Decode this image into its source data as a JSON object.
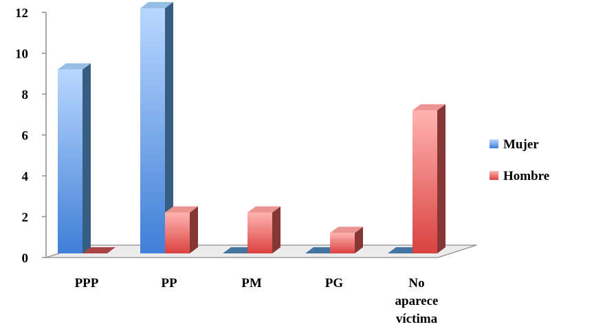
{
  "chart_data": {
    "type": "bar",
    "title": "",
    "xlabel": "",
    "ylabel": "",
    "ylim": [
      0,
      12
    ],
    "yticks": [
      "0",
      "2",
      "4",
      "6",
      "8",
      "10",
      "12"
    ],
    "categories": [
      [
        "PPP"
      ],
      [
        "PP"
      ],
      [
        "PM"
      ],
      [
        "PG"
      ],
      [
        "No",
        "aparece",
        "víctima"
      ]
    ],
    "series": [
      {
        "name": "Mujer",
        "values": [
          9,
          12,
          0,
          0,
          0
        ],
        "color": "#5b9bd5"
      },
      {
        "name": "Hombre",
        "values": [
          0,
          2,
          2,
          1,
          7
        ],
        "color": "#e05a57"
      }
    ],
    "legend_position": "right",
    "grid": false,
    "style": "3d-column"
  }
}
